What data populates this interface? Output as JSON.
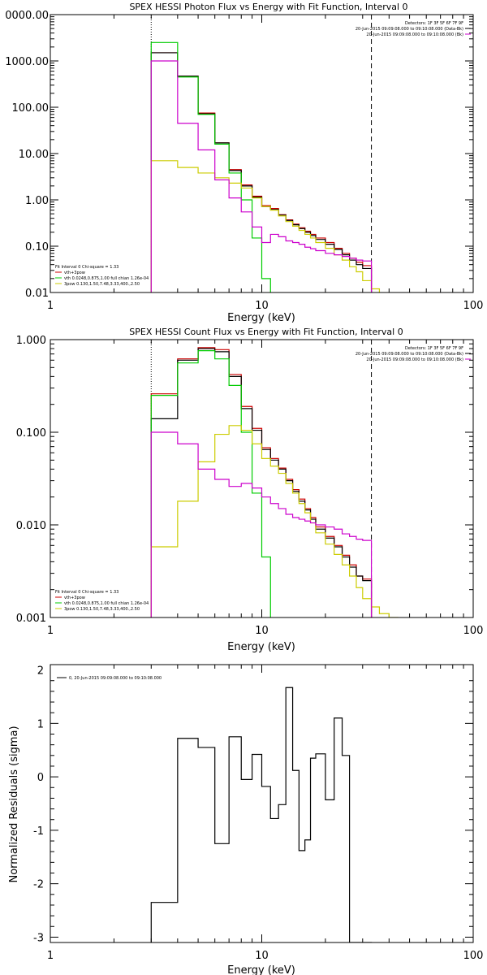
{
  "chart_data": [
    {
      "type": "line",
      "title": "SPEX HESSI Photon Flux vs Energy with Fit Function, Interval 0",
      "xlabel": "Energy (keV)",
      "ylabel": "",
      "xscale": "log",
      "yscale": "log",
      "xlim": [
        1,
        100
      ],
      "ylim": [
        0.01,
        10000
      ],
      "x_ticks": [
        "1",
        "10",
        "100"
      ],
      "y_ticks": [
        "0.01",
        "0.10",
        "1.00",
        "10.00",
        "100.00",
        "1000.00",
        "0000.00"
      ],
      "vlines": [
        {
          "x": 3,
          "style": "dotted"
        },
        {
          "x": 33,
          "style": "dashed"
        }
      ],
      "info_lines": [
        "Detectors: 1F 3F 5F 6F 7F 9F",
        "20-Jun-2015 09:09:08.000 to 09:10:08.000 (Data-Bk)",
        "20-Jun-2015 09:09:08.000 to 09:10:08.000 (Bk)"
      ],
      "legend": [
        "Fit Interval 0   Chi-square = 1.33",
        "vth+3pow",
        "vth 0.0248,0.875,1.00  full chian 1.26e-04",
        "3pow 0.130,1.50,7.48,3.33,400.,2.50"
      ],
      "series": [
        {
          "name": "vth+3pow",
          "color": "#cc0000",
          "edges": [
            3,
            4,
            5,
            6,
            7,
            8,
            9,
            10,
            11,
            12,
            13,
            14,
            15,
            16,
            17,
            18,
            20,
            22,
            24,
            26,
            28,
            30,
            33
          ],
          "values": [
            1500,
            470,
            75,
            17,
            4.5,
            2.1,
            1.2,
            0.75,
            0.65,
            0.48,
            0.37,
            0.3,
            0.25,
            0.21,
            0.18,
            0.15,
            0.12,
            0.09,
            0.07,
            0.055,
            0.045,
            0.038
          ]
        },
        {
          "name": "",
          "color": "#000000",
          "edges": [
            3,
            4,
            5,
            6,
            7,
            8,
            9,
            10,
            11,
            12,
            13,
            14,
            15,
            16,
            17,
            18,
            20,
            22,
            24,
            26,
            28,
            30,
            33
          ],
          "values": [
            1500,
            470,
            72,
            17,
            4.3,
            2.0,
            1.15,
            0.72,
            0.62,
            0.47,
            0.36,
            0.29,
            0.24,
            0.2,
            0.17,
            0.14,
            0.11,
            0.085,
            0.065,
            0.05,
            0.04,
            0.033
          ]
        },
        {
          "name": "vth",
          "color": "#00cc00",
          "edges": [
            3,
            4,
            5,
            6,
            7,
            8,
            9,
            10,
            11
          ],
          "values": [
            2500,
            450,
            70,
            16,
            3.8,
            1.0,
            0.15,
            0.02
          ]
        },
        {
          "name": "3pow",
          "color": "#cccc00",
          "edges": [
            3,
            4,
            5,
            6,
            7,
            8,
            9,
            10,
            11,
            12,
            13,
            14,
            15,
            16,
            17,
            18,
            20,
            22,
            24,
            26,
            28,
            30,
            33,
            36
          ],
          "values": [
            7.0,
            5.0,
            3.8,
            3.0,
            2.3,
            1.8,
            1.1,
            0.72,
            0.6,
            0.45,
            0.34,
            0.27,
            0.22,
            0.18,
            0.15,
            0.12,
            0.09,
            0.065,
            0.05,
            0.036,
            0.028,
            0.018,
            0.012
          ]
        },
        {
          "name": "Bk",
          "color": "#cc00cc",
          "edges": [
            3,
            4,
            5,
            6,
            7,
            8,
            9,
            10,
            11,
            12,
            13,
            14,
            15,
            16,
            17,
            18,
            20,
            22,
            24,
            26,
            28,
            30,
            33
          ],
          "values": [
            1000,
            45,
            12,
            2.7,
            1.1,
            0.55,
            0.26,
            0.12,
            0.18,
            0.16,
            0.13,
            0.12,
            0.11,
            0.095,
            0.088,
            0.08,
            0.07,
            0.065,
            0.06,
            0.055,
            0.05,
            0.048
          ]
        }
      ]
    },
    {
      "type": "line",
      "title": "SPEX HESSI Count Flux vs Energy with Fit Function, Interval 0",
      "xlabel": "Energy (keV)",
      "ylabel": "",
      "xscale": "log",
      "yscale": "log",
      "xlim": [
        1,
        100
      ],
      "ylim": [
        0.001,
        1
      ],
      "x_ticks": [
        "1",
        "10",
        "100"
      ],
      "y_ticks": [
        "0.001",
        "0.010",
        "0.100",
        "1.000"
      ],
      "vlines": [
        {
          "x": 3,
          "style": "dotted"
        },
        {
          "x": 33,
          "style": "dashed"
        }
      ],
      "info_lines": [
        "Detectors: 1F 3F 5F 6F 7F 9F",
        "20-Jun-2015 09:09:08.000 to 09:10:08.000 (Data-Bk)",
        "20-Jun-2015 09:09:08.000 to 09:10:08.000 (Bk)"
      ],
      "legend": [
        "Fit Interval 0   Chi-square = 1.33",
        "vth+3pow",
        "vth 0.0248,0.875,1.00  full chian 1.26e-04",
        "3pow 0.130,1.50,7.48,3.33,400.,2.50"
      ],
      "series": [
        {
          "name": "vth+3pow",
          "color": "#cc0000",
          "edges": [
            3,
            4,
            5,
            6,
            7,
            8,
            9,
            10,
            11,
            12,
            13,
            14,
            15,
            16,
            17,
            18,
            20,
            22,
            24,
            26,
            28,
            30,
            33
          ],
          "values": [
            0.26,
            0.62,
            0.82,
            0.78,
            0.42,
            0.19,
            0.11,
            0.068,
            0.052,
            0.041,
            0.031,
            0.024,
            0.019,
            0.015,
            0.012,
            0.0095,
            0.0075,
            0.006,
            0.0047,
            0.0037,
            0.0028,
            0.0026
          ]
        },
        {
          "name": "",
          "color": "#000000",
          "edges": [
            3,
            4,
            5,
            6,
            7,
            8,
            9,
            10,
            11,
            12,
            13,
            14,
            15,
            16,
            17,
            18,
            20,
            22,
            24,
            26,
            28,
            30,
            33
          ],
          "values": [
            0.14,
            0.6,
            0.8,
            0.74,
            0.4,
            0.18,
            0.105,
            0.065,
            0.05,
            0.04,
            0.03,
            0.023,
            0.018,
            0.0145,
            0.0115,
            0.009,
            0.0072,
            0.0058,
            0.0045,
            0.0035,
            0.0028,
            0.0025
          ]
        },
        {
          "name": "vth",
          "color": "#00cc00",
          "edges": [
            3,
            4,
            5,
            6,
            7,
            8,
            9,
            10,
            11
          ],
          "values": [
            0.25,
            0.56,
            0.76,
            0.62,
            0.32,
            0.1,
            0.022,
            0.0045
          ]
        },
        {
          "name": "3pow",
          "color": "#cccc00",
          "edges": [
            3,
            4,
            5,
            6,
            7,
            8,
            9,
            10,
            11,
            12,
            13,
            14,
            15,
            16,
            17,
            18,
            20,
            22,
            24,
            26,
            28,
            30,
            33,
            36,
            40,
            44
          ],
          "values": [
            0.0058,
            0.018,
            0.048,
            0.095,
            0.118,
            0.105,
            0.075,
            0.052,
            0.043,
            0.036,
            0.028,
            0.022,
            0.017,
            0.0135,
            0.0105,
            0.0082,
            0.0062,
            0.0048,
            0.0037,
            0.0028,
            0.0021,
            0.0016,
            0.0013,
            0.0011,
            0.001
          ]
        },
        {
          "name": "Bk",
          "color": "#cc00cc",
          "edges": [
            3,
            4,
            5,
            6,
            7,
            8,
            9,
            10,
            11,
            12,
            13,
            14,
            15,
            16,
            17,
            18,
            20,
            22,
            24,
            26,
            28,
            30,
            33
          ],
          "values": [
            0.1,
            0.075,
            0.04,
            0.031,
            0.026,
            0.028,
            0.025,
            0.02,
            0.017,
            0.015,
            0.013,
            0.012,
            0.0115,
            0.011,
            0.0105,
            0.01,
            0.0095,
            0.009,
            0.008,
            0.0075,
            0.007,
            0.0068
          ]
        }
      ]
    },
    {
      "type": "line",
      "title": "",
      "xlabel": "Energy (keV)",
      "ylabel": "Normalized Residuals (sigma)",
      "xscale": "log",
      "yscale": "linear",
      "xlim": [
        1,
        100
      ],
      "ylim": [
        -3.1,
        2.1
      ],
      "x_ticks": [
        "1",
        "10",
        "100"
      ],
      "y_ticks": [
        "-3",
        "-2",
        "-1",
        "0",
        "1",
        "2"
      ],
      "legend": [
        "0, 20-Jun-2015 09:09:08.000 to 09:10:08.000"
      ],
      "series": [
        {
          "name": "0, 20-Jun-2015 09:09:08.000 to 09:10:08.000",
          "color": "#000000",
          "edges": [
            3,
            4,
            5,
            6,
            7,
            8,
            9,
            10,
            11,
            12,
            13,
            14,
            15,
            16,
            17,
            18,
            20,
            22,
            24,
            26,
            28,
            30,
            33
          ],
          "values": [
            -2.35,
            0.72,
            0.55,
            -1.25,
            0.75,
            -0.05,
            0.42,
            -0.18,
            -0.78,
            -0.52,
            1.67,
            0.12,
            -1.38,
            -1.18,
            0.35,
            0.43,
            -0.43,
            1.1,
            0.4,
            -3.1,
            -3.1,
            -3.1
          ]
        }
      ]
    }
  ]
}
